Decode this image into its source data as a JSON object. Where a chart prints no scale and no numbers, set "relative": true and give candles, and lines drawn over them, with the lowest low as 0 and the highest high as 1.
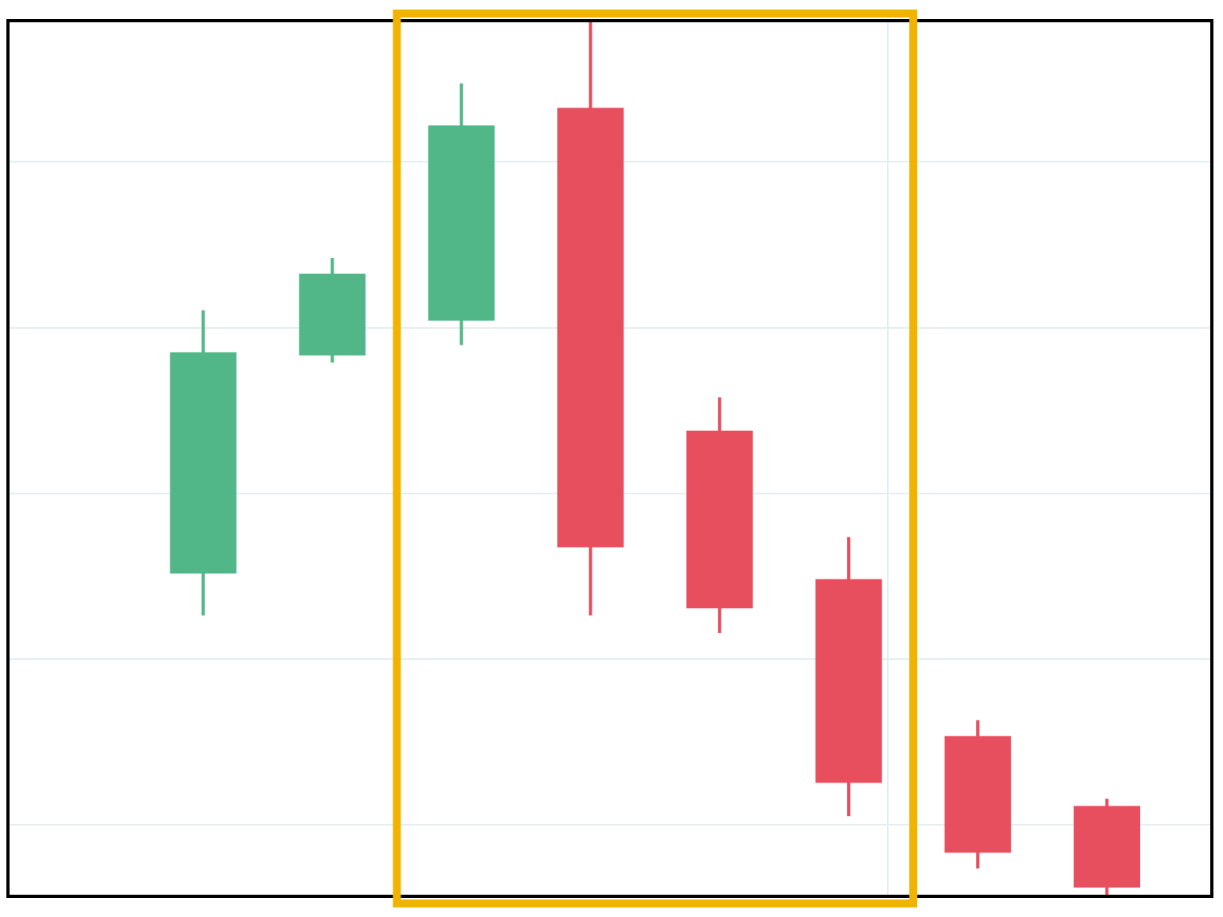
{
  "chart_data": {
    "type": "candlestick",
    "relative": true,
    "categories": [
      null,
      null,
      null,
      null,
      null,
      null,
      null,
      null
    ],
    "ohlc": [
      [
        0.37,
        0.67,
        0.32,
        0.62
      ],
      [
        0.62,
        0.73,
        0.61,
        0.71
      ],
      [
        0.66,
        0.93,
        0.63,
        0.88
      ],
      [
        0.9,
        1.0,
        0.32,
        0.4
      ],
      [
        0.53,
        0.57,
        0.3,
        0.33
      ],
      [
        0.36,
        0.41,
        0.09,
        0.13
      ],
      [
        0.18,
        0.2,
        0.03,
        0.05
      ],
      [
        0.1,
        0.11,
        0.0,
        0.01
      ]
    ],
    "colors": [
      "#52b788",
      "#52b788",
      "#52b788",
      "#e84f5e",
      "#e84f5e",
      "#e84f5e",
      "#e84f5e",
      "#e84f5e"
    ],
    "grid": true,
    "tick_labels": false
  }
}
